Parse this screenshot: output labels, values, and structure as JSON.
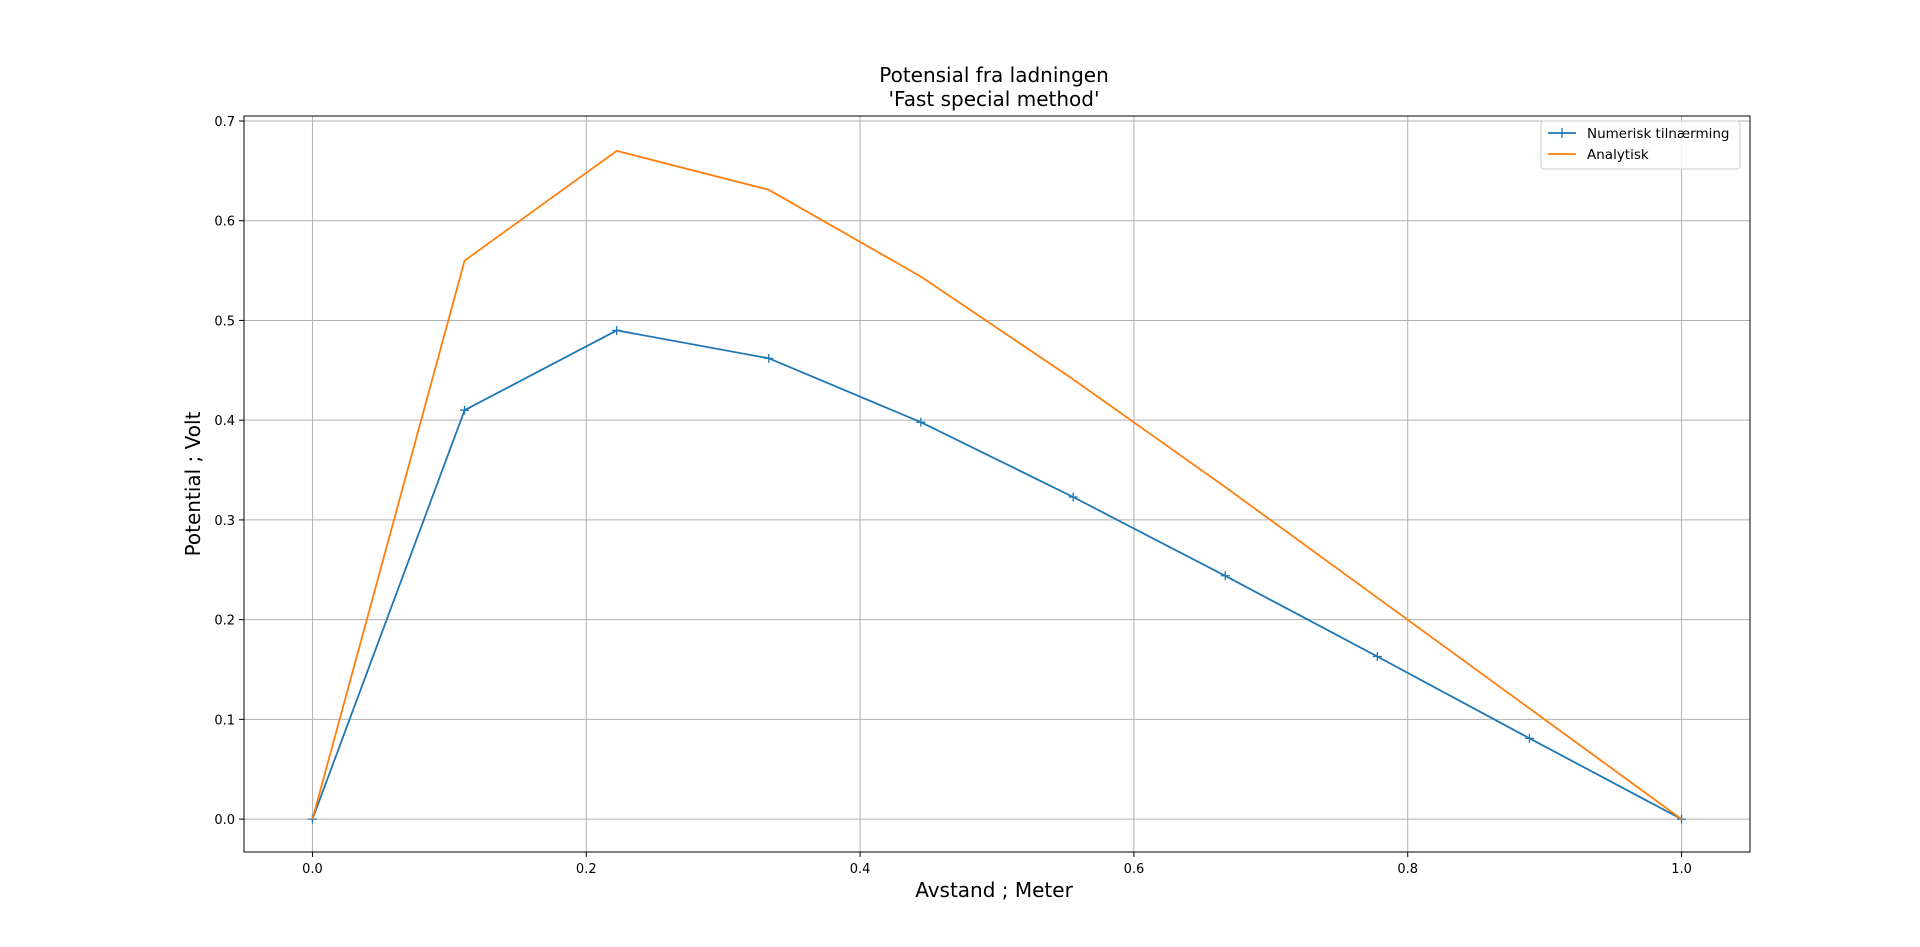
{
  "chart_data": {
    "type": "line",
    "title": "Potensial fra ladningen",
    "subtitle": "'Fast special method'",
    "xlabel": "Avstand ; Meter",
    "ylabel": "Potential ; Volt",
    "xlim": [
      -0.05,
      1.05
    ],
    "ylim": [
      -0.033,
      0.705
    ],
    "xticks": [
      "0.0",
      "0.2",
      "0.4",
      "0.6",
      "0.8",
      "1.0"
    ],
    "yticks": [
      "0.0",
      "0.1",
      "0.2",
      "0.3",
      "0.4",
      "0.5",
      "0.6",
      "0.7"
    ],
    "grid": true,
    "legend_position": "top-right",
    "series": [
      {
        "name": "Numerisk tilnærming",
        "color": "#1f77b4",
        "marker": "+",
        "x": [
          0.0,
          0.1111,
          0.2222,
          0.3333,
          0.4444,
          0.5556,
          0.6667,
          0.7778,
          0.8889,
          1.0
        ],
        "y": [
          0.0,
          0.41,
          0.49,
          0.462,
          0.398,
          0.323,
          0.244,
          0.163,
          0.081,
          0.0
        ]
      },
      {
        "name": "Analytisk",
        "color": "#ff7f0e",
        "marker": "",
        "x": [
          0.0,
          0.1111,
          0.2222,
          0.3333,
          0.4444,
          0.5556,
          0.6667,
          0.7778,
          0.8889,
          1.0
        ],
        "y": [
          0.0,
          0.56,
          0.67,
          0.631,
          0.544,
          0.441,
          0.333,
          0.222,
          0.111,
          0.0
        ]
      }
    ]
  }
}
